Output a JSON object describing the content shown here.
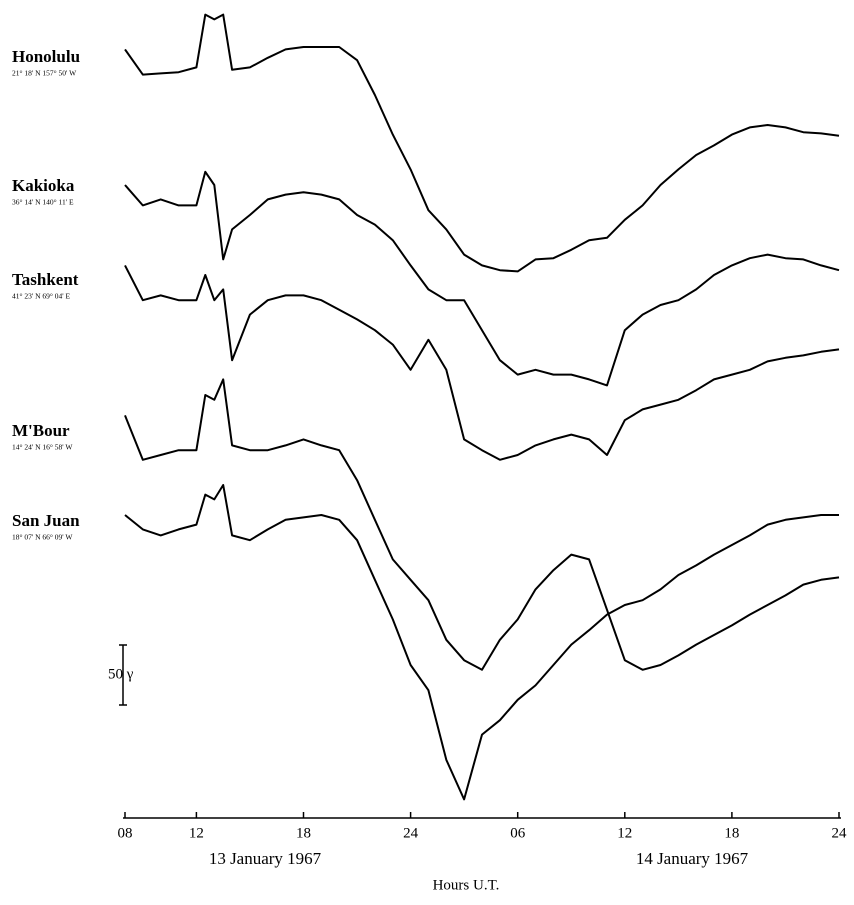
{
  "chart_data": {
    "type": "line",
    "x_label": "Hours U.T.",
    "date_labels": [
      "13 January 1967",
      "14 January 1967"
    ],
    "x": [
      8,
      9,
      10,
      11,
      12,
      12.5,
      13,
      13.5,
      14,
      15,
      16,
      17,
      18,
      19,
      20,
      21,
      22,
      23,
      24,
      25,
      26,
      27,
      28,
      29,
      30,
      31,
      32,
      33,
      34,
      35,
      36,
      37,
      38,
      39,
      40,
      41,
      42,
      43,
      44,
      45,
      46,
      47,
      48
    ],
    "xlim": [
      8,
      48
    ],
    "xticks": [
      {
        "value": 8,
        "label": "08"
      },
      12,
      18,
      24,
      {
        "value": 30,
        "label": "06"
      },
      {
        "value": 36,
        "label": "12"
      },
      {
        "value": 42,
        "label": "18"
      },
      {
        "value": 48,
        "label": "24"
      }
    ],
    "ylim": [
      0,
      670
    ],
    "scale_bar": {
      "value": 50,
      "label": "50 γ"
    },
    "series": [
      {
        "name": "Honolulu",
        "coords": "21° 18' N 157° 50' W",
        "color": "#000000",
        "values": [
          638,
          617,
          618,
          619,
          623,
          667,
          663,
          667,
          621,
          623,
          631,
          638,
          640,
          640,
          640,
          629,
          600,
          567,
          538,
          504,
          488,
          467,
          458,
          454,
          453,
          463,
          464,
          471,
          479,
          481,
          496,
          508,
          525,
          538,
          550,
          558,
          567,
          573,
          575,
          573,
          569,
          568,
          566
        ]
      },
      {
        "name": "Kakioka",
        "coords": "36° 14' N 140° 11' E",
        "color": "#000000",
        "values": [
          525,
          508,
          513,
          508,
          508,
          536,
          525,
          463,
          488,
          500,
          513,
          517,
          519,
          517,
          513,
          500,
          492,
          479,
          458,
          438,
          429,
          429,
          404,
          379,
          367,
          371,
          367,
          367,
          363,
          358,
          404,
          417,
          425,
          429,
          438,
          450,
          458,
          464,
          467,
          464,
          463,
          458,
          454
        ]
      },
      {
        "name": "Tashkent",
        "coords": "41° 23' N 69° 04' E",
        "color": "#000000",
        "values": [
          458,
          429,
          433,
          429,
          429,
          450,
          429,
          438,
          379,
          417,
          429,
          433,
          433,
          429,
          421,
          413,
          404,
          392,
          371,
          396,
          371,
          313,
          304,
          296,
          300,
          308,
          313,
          317,
          313,
          300,
          329,
          338,
          342,
          346,
          354,
          363,
          367,
          371,
          378,
          381,
          383,
          386,
          388
        ]
      },
      {
        "name": "M'Bour",
        "coords": "14° 24' N 16° 58' W",
        "color": "#000000",
        "values": [
          333,
          296,
          300,
          304,
          304,
          350,
          346,
          363,
          308,
          304,
          304,
          308,
          313,
          308,
          304,
          279,
          246,
          213,
          196,
          179,
          146,
          129,
          121,
          146,
          163,
          188,
          204,
          217,
          213,
          171,
          129,
          121,
          125,
          133,
          142,
          150,
          158,
          167,
          175,
          183,
          192,
          196,
          198
        ]
      },
      {
        "name": "San Juan",
        "coords": "18° 07' N 66° 09' W",
        "color": "#000000",
        "values": [
          250,
          238,
          233,
          238,
          242,
          267,
          263,
          275,
          233,
          229,
          238,
          246,
          248,
          250,
          246,
          229,
          196,
          163,
          125,
          104,
          46,
          13,
          67,
          79,
          96,
          108,
          125,
          142,
          154,
          167,
          175,
          179,
          188,
          200,
          208,
          217,
          225,
          233,
          242,
          246,
          248,
          250,
          250
        ]
      }
    ]
  }
}
